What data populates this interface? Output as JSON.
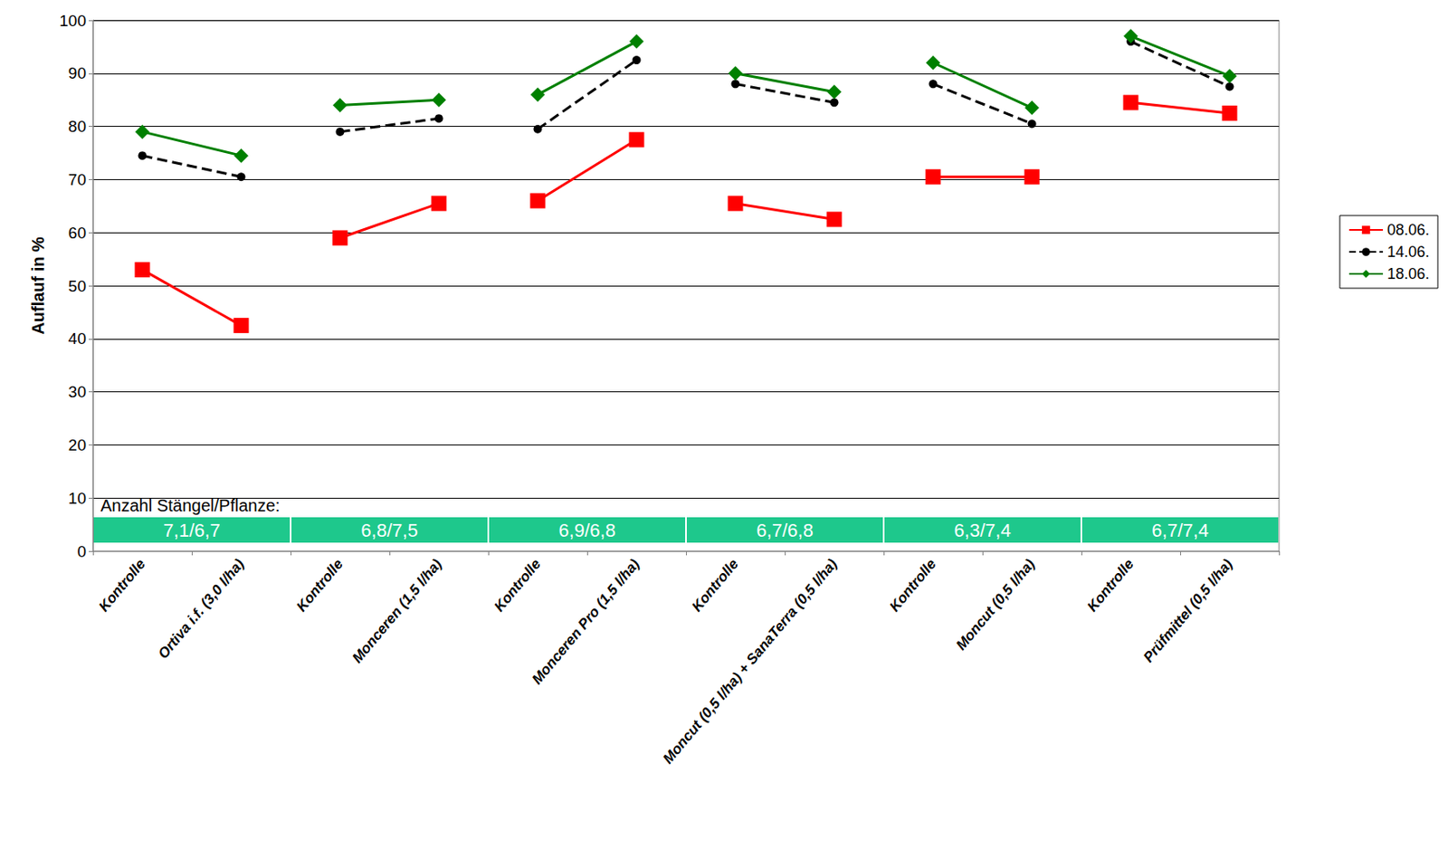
{
  "chart_data": {
    "type": "line",
    "y_label": "Auflauf in %",
    "categories": [
      "Kontrolle",
      "Ortiva i.f. (3,0 l/ha)",
      "Kontrolle",
      "Monceren (1,5 l/ha)",
      "Kontrolle",
      "Monceren Pro (1,5 l/ha)",
      "Kontrolle",
      "Moncut (0,5 l/ha) + SanaTerra (0,5 l/ha)",
      "Kontrolle",
      "Moncut (0,5 l/ha)",
      "Kontrolle",
      "Prüfmittel (0,5 l/ha)"
    ],
    "series": [
      {
        "name": "08.06.",
        "color": "#ff0000",
        "marker": "square",
        "line_style": "solid",
        "values": [
          53,
          42.5,
          59,
          65.5,
          66,
          77.5,
          65.5,
          62.5,
          70.5,
          70.5,
          84.5,
          82.5
        ]
      },
      {
        "name": "14.06.",
        "color": "#000000",
        "marker": "circle",
        "line_style": "dashed",
        "values": [
          74.5,
          70.5,
          79,
          81.5,
          79.5,
          92.5,
          88,
          84.5,
          88,
          80.5,
          96,
          87.5
        ]
      },
      {
        "name": "18.06.",
        "color": "#008000",
        "marker": "diamond",
        "line_style": "solid",
        "values": [
          79,
          74.5,
          84,
          85,
          86,
          96,
          90,
          86.5,
          92,
          83.5,
          97,
          89.5
        ]
      }
    ],
    "ylim": [
      0,
      100
    ],
    "yticks": [
      0,
      10,
      20,
      30,
      40,
      50,
      60,
      70,
      80,
      90,
      100
    ],
    "grid": true,
    "legend": "right",
    "annotations": {
      "title": "Anzahl Stängel/Pflanze:",
      "labels": [
        "7,1/6,7",
        "6,8/7,5",
        "6,9/6,8",
        "6,7/6,8",
        "6,3/7,4",
        "6,7/7,4"
      ]
    }
  }
}
